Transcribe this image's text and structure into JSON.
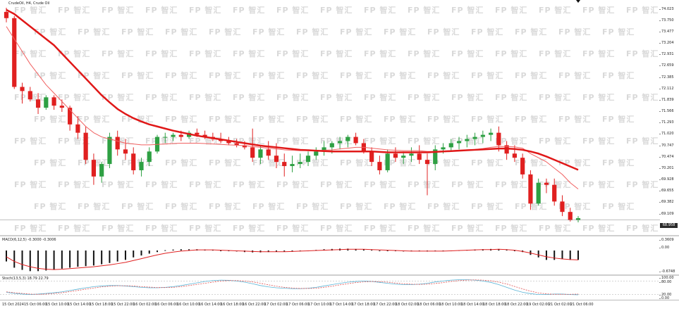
{
  "main": {
    "symbol_label": "CrudeOil, H4, Crude Oil",
    "price_ticks": [
      "74.023",
      "73.750",
      "73.477",
      "73.204",
      "72.931",
      "72.659",
      "72.385",
      "72.112",
      "71.839",
      "71.566",
      "71.293",
      "71.020",
      "70.747",
      "70.474",
      "70.201",
      "69.928",
      "69.655",
      "69.382",
      "69.109"
    ],
    "current_price": "68.958",
    "watermark": "FP 智汇"
  },
  "macd": {
    "label": "MACD(6,12,5) -0.3000 -0.3006",
    "ticks": [
      "0.3609",
      "0.00",
      "-0.6748"
    ]
  },
  "stoch": {
    "label": "Stoch(13,5,3) 18.79 22.79",
    "ticks": [
      "100.00",
      "80.00",
      "20.00",
      "0.00"
    ]
  },
  "time_axis": {
    "labels": [
      "15 Oct 2024",
      "15 Oct 06:00",
      "15 Oct 10:00",
      "15 Oct 14:00",
      "15 Oct 18:00",
      "15 Oct 22:00",
      "16 Oct 02:00",
      "16 Oct 06:00",
      "16 Oct 10:00",
      "16 Oct 14:00",
      "16 Oct 18:00",
      "16 Oct 22:00",
      "17 Oct 02:00",
      "17 Oct 06:00",
      "17 Oct 10:00",
      "17 Oct 14:00",
      "17 Oct 18:00",
      "17 Oct 22:00",
      "18 Oct 02:00",
      "18 Oct 06:00",
      "18 Oct 10:00",
      "18 Oct 14:00",
      "18 Oct 18:00",
      "18 Oct 22:00",
      "19 Oct 02:00",
      "21 Oct 02:00",
      "21 Oct 06:00"
    ]
  },
  "chart_data": {
    "type": "candlestick",
    "title": "CrudeOil, H4, Crude Oil",
    "ylim": [
      68.9,
      74.1
    ],
    "colors": {
      "up": "#2ea043",
      "down": "#e02020",
      "ma_fast": "#f06060",
      "ma_slow": "#e01818"
    },
    "candles": [
      [
        73.95,
        74.05,
        73.7,
        73.8
      ],
      [
        73.8,
        73.85,
        72.1,
        72.15
      ],
      [
        72.15,
        72.25,
        71.75,
        72.05
      ],
      [
        72.05,
        72.15,
        71.8,
        71.85
      ],
      [
        71.85,
        72.0,
        71.5,
        71.65
      ],
      [
        71.65,
        71.95,
        71.6,
        71.9
      ],
      [
        71.9,
        71.95,
        71.6,
        71.7
      ],
      [
        71.7,
        71.85,
        71.55,
        71.65
      ],
      [
        71.65,
        71.7,
        71.1,
        71.25
      ],
      [
        71.25,
        71.45,
        70.9,
        71.05
      ],
      [
        71.05,
        71.2,
        70.3,
        70.4
      ],
      [
        70.4,
        70.55,
        69.8,
        70.0
      ],
      [
        70.0,
        70.35,
        69.85,
        70.3
      ],
      [
        70.3,
        71.05,
        70.2,
        70.95
      ],
      [
        70.95,
        71.1,
        70.5,
        70.65
      ],
      [
        70.65,
        70.9,
        70.4,
        70.55
      ],
      [
        70.55,
        70.7,
        70.05,
        70.15
      ],
      [
        70.15,
        70.45,
        70.0,
        70.35
      ],
      [
        70.35,
        70.7,
        70.25,
        70.6
      ],
      [
        70.6,
        71.0,
        70.55,
        70.95
      ],
      [
        70.95,
        71.05,
        70.8,
        70.95
      ],
      [
        70.95,
        71.05,
        70.85,
        71.0
      ],
      [
        71.0,
        71.1,
        70.85,
        70.95
      ],
      [
        70.95,
        71.1,
        70.9,
        71.05
      ],
      [
        71.05,
        71.15,
        70.95,
        71.0
      ],
      [
        71.0,
        71.1,
        70.9,
        70.95
      ],
      [
        70.95,
        71.05,
        70.85,
        70.9
      ],
      [
        70.9,
        71.05,
        70.8,
        70.85
      ],
      [
        70.85,
        70.95,
        70.75,
        70.8
      ],
      [
        70.8,
        70.9,
        70.7,
        70.75
      ],
      [
        70.75,
        70.85,
        70.65,
        70.7
      ],
      [
        70.7,
        71.15,
        70.35,
        70.45
      ],
      [
        70.45,
        70.75,
        70.3,
        70.65
      ],
      [
        70.65,
        70.85,
        70.4,
        70.5
      ],
      [
        70.5,
        70.8,
        70.2,
        70.35
      ],
      [
        70.35,
        70.55,
        70.0,
        70.25
      ],
      [
        70.25,
        70.5,
        70.1,
        70.3
      ],
      [
        70.3,
        70.55,
        70.2,
        70.35
      ],
      [
        70.35,
        70.6,
        70.25,
        70.5
      ],
      [
        70.5,
        70.7,
        70.4,
        70.6
      ],
      [
        70.6,
        70.85,
        70.5,
        70.7
      ],
      [
        70.7,
        70.85,
        70.55,
        70.8
      ],
      [
        70.8,
        70.95,
        70.65,
        70.85
      ],
      [
        70.85,
        71.0,
        70.7,
        70.95
      ],
      [
        70.95,
        71.05,
        70.75,
        70.8
      ],
      [
        70.8,
        70.9,
        70.55,
        70.6
      ],
      [
        70.6,
        70.7,
        70.25,
        70.35
      ],
      [
        70.35,
        70.5,
        70.05,
        70.15
      ],
      [
        70.15,
        70.65,
        70.1,
        70.55
      ],
      [
        70.55,
        70.7,
        70.35,
        70.45
      ],
      [
        70.45,
        70.6,
        70.3,
        70.5
      ],
      [
        70.5,
        70.7,
        70.35,
        70.55
      ],
      [
        70.55,
        70.75,
        70.3,
        70.4
      ],
      [
        70.4,
        70.55,
        69.55,
        70.3
      ],
      [
        70.3,
        70.75,
        70.15,
        70.65
      ],
      [
        70.65,
        70.8,
        70.55,
        70.7
      ],
      [
        70.7,
        70.9,
        70.6,
        70.8
      ],
      [
        70.8,
        70.95,
        70.65,
        70.85
      ],
      [
        70.85,
        71.0,
        70.7,
        70.9
      ],
      [
        70.9,
        71.05,
        70.75,
        70.95
      ],
      [
        70.95,
        71.1,
        70.8,
        71.0
      ],
      [
        71.0,
        71.15,
        70.85,
        71.05
      ],
      [
        71.05,
        71.2,
        70.6,
        70.75
      ],
      [
        70.75,
        70.85,
        70.4,
        70.55
      ],
      [
        70.55,
        70.75,
        70.35,
        70.45
      ],
      [
        70.45,
        70.55,
        69.95,
        70.05
      ],
      [
        70.05,
        70.15,
        69.2,
        69.35
      ],
      [
        69.35,
        69.95,
        69.3,
        69.85
      ],
      [
        69.85,
        69.95,
        69.6,
        69.8
      ],
      [
        69.8,
        69.95,
        69.3,
        69.4
      ],
      [
        69.4,
        69.55,
        69.05,
        69.15
      ],
      [
        69.15,
        69.25,
        68.92,
        68.95
      ],
      [
        68.95,
        69.05,
        68.9,
        69.0
      ]
    ],
    "ma_fast": [
      73.6,
      73.3,
      73.0,
      72.7,
      72.45,
      72.2,
      72.0,
      71.8,
      71.6,
      71.4,
      71.2,
      71.05,
      70.95,
      70.9,
      70.85,
      70.8,
      70.78,
      70.76,
      70.76,
      70.77,
      70.78,
      70.79,
      70.8,
      70.8,
      70.8,
      70.79,
      70.78,
      70.77,
      70.76,
      70.75,
      70.74,
      70.72,
      70.7,
      70.68,
      70.66,
      70.64,
      70.63,
      70.62,
      70.62,
      70.62,
      70.63,
      70.64,
      70.66,
      70.68,
      70.7,
      70.7,
      70.68,
      70.66,
      70.64,
      70.63,
      70.62,
      70.62,
      70.62,
      70.6,
      70.6,
      70.61,
      70.62,
      70.63,
      70.64,
      70.65,
      70.67,
      70.7,
      70.72,
      70.72,
      70.71,
      70.68,
      70.55,
      70.45,
      70.35,
      70.2,
      70.05,
      69.85,
      69.7
    ],
    "ma_slow": [
      74.0,
      73.9,
      73.75,
      73.6,
      73.45,
      73.3,
      73.15,
      72.95,
      72.75,
      72.55,
      72.35,
      72.15,
      71.95,
      71.78,
      71.62,
      71.5,
      71.4,
      71.32,
      71.25,
      71.2,
      71.15,
      71.1,
      71.06,
      71.02,
      70.98,
      70.95,
      70.92,
      70.89,
      70.86,
      70.83,
      70.8,
      70.77,
      70.74,
      70.72,
      70.7,
      70.68,
      70.66,
      70.64,
      70.63,
      70.62,
      70.61,
      70.6,
      70.6,
      70.6,
      70.6,
      70.6,
      70.6,
      70.59,
      70.58,
      70.58,
      70.58,
      70.58,
      70.58,
      70.58,
      70.59,
      70.6,
      70.61,
      70.62,
      70.63,
      70.64,
      70.65,
      70.66,
      70.67,
      70.67,
      70.66,
      70.64,
      70.6,
      70.55,
      70.48,
      70.4,
      70.32,
      70.24,
      70.16
    ],
    "macd_hist": [
      -0.35,
      -0.55,
      -0.62,
      -0.66,
      -0.66,
      -0.64,
      -0.62,
      -0.58,
      -0.55,
      -0.52,
      -0.5,
      -0.48,
      -0.44,
      -0.4,
      -0.35,
      -0.3,
      -0.22,
      -0.16,
      -0.1,
      -0.05,
      0.01,
      0.03,
      0.04,
      0.04,
      0.04,
      0.03,
      0.02,
      0.0,
      -0.02,
      -0.03,
      -0.05,
      -0.06,
      -0.06,
      -0.05,
      -0.04,
      -0.03,
      -0.02,
      -0.01,
      0.0,
      0.02,
      0.04,
      0.05,
      0.06,
      0.06,
      0.05,
      0.04,
      0.02,
      0.0,
      -0.02,
      -0.02,
      -0.03,
      -0.02,
      -0.02,
      -0.03,
      -0.02,
      -0.01,
      0.0,
      0.01,
      0.02,
      0.03,
      0.04,
      0.05,
      0.05,
      0.03,
      0.0,
      -0.05,
      -0.14,
      -0.22,
      -0.3,
      -0.3,
      -0.28,
      -0.3,
      -0.3
    ],
    "macd_signal": [
      -0.2,
      -0.35,
      -0.45,
      -0.52,
      -0.57,
      -0.6,
      -0.61,
      -0.6,
      -0.58,
      -0.56,
      -0.54,
      -0.52,
      -0.49,
      -0.46,
      -0.42,
      -0.38,
      -0.32,
      -0.26,
      -0.2,
      -0.14,
      -0.09,
      -0.05,
      -0.02,
      0.0,
      0.02,
      0.02,
      0.02,
      0.01,
      0.0,
      -0.01,
      -0.02,
      -0.03,
      -0.04,
      -0.04,
      -0.04,
      -0.04,
      -0.03,
      -0.02,
      -0.01,
      0.0,
      0.01,
      0.02,
      0.03,
      0.04,
      0.04,
      0.04,
      0.03,
      0.02,
      0.01,
      0.0,
      -0.01,
      -0.02,
      -0.02,
      -0.02,
      -0.02,
      -0.02,
      -0.01,
      0.0,
      0.01,
      0.02,
      0.03,
      0.03,
      0.04,
      0.03,
      0.01,
      -0.03,
      -0.08,
      -0.14,
      -0.2,
      -0.24,
      -0.27,
      -0.29,
      -0.3
    ],
    "stoch_main": [
      30,
      25,
      22,
      20,
      22,
      25,
      28,
      32,
      38,
      44,
      50,
      55,
      58,
      60,
      60,
      58,
      55,
      52,
      50,
      50,
      52,
      55,
      60,
      66,
      72,
      78,
      82,
      84,
      83,
      80,
      75,
      68,
      60,
      54,
      50,
      48,
      46,
      46,
      48,
      52,
      58,
      64,
      70,
      75,
      78,
      80,
      78,
      74,
      70,
      66,
      64,
      64,
      66,
      70,
      76,
      80,
      84,
      86,
      86,
      84,
      80,
      74,
      64,
      52,
      40,
      30,
      24,
      20,
      20,
      22,
      22,
      20,
      19
    ],
    "stoch_signal": [
      32,
      28,
      25,
      22,
      21,
      22,
      25,
      28,
      33,
      38,
      44,
      49,
      54,
      57,
      59,
      59,
      58,
      55,
      53,
      51,
      51,
      52,
      55,
      60,
      65,
      70,
      75,
      80,
      82,
      82,
      80,
      76,
      70,
      63,
      57,
      52,
      49,
      47,
      47,
      48,
      52,
      57,
      63,
      68,
      73,
      76,
      78,
      77,
      75,
      71,
      68,
      66,
      65,
      66,
      69,
      73,
      78,
      82,
      84,
      85,
      84,
      81,
      75,
      67,
      56,
      45,
      35,
      27,
      23,
      21,
      21,
      21,
      22
    ]
  }
}
